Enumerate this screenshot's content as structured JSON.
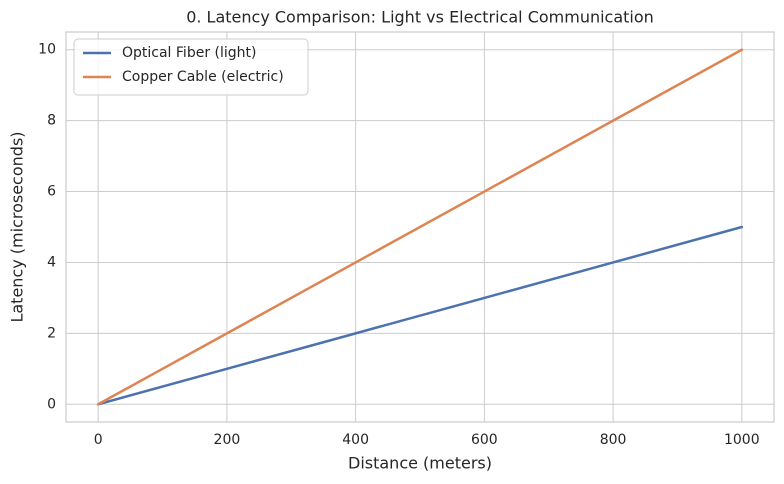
{
  "chart_data": {
    "type": "line",
    "title": "0. Latency Comparison: Light vs Electrical Communication",
    "x_label": "Distance (meters)",
    "y_label": "Latency (microseconds)",
    "x": [
      0,
      200,
      400,
      600,
      800,
      1000
    ],
    "series": [
      {
        "name": "Optical Fiber (light)",
        "color": "#4c72b0",
        "values": [
          0,
          1,
          2,
          3,
          4,
          5
        ]
      },
      {
        "name": "Copper Cable (electric)",
        "color": "#dd8452",
        "values": [
          0,
          2,
          4,
          6,
          8,
          10
        ]
      }
    ],
    "xlim": [
      -50,
      1050
    ],
    "xticks": [
      0,
      200,
      400,
      600,
      800,
      1000
    ],
    "ylim": [
      -0.5,
      10.5
    ],
    "yticks": [
      0,
      2,
      4,
      6,
      8,
      10
    ],
    "grid": true,
    "legend": "upper-left"
  }
}
